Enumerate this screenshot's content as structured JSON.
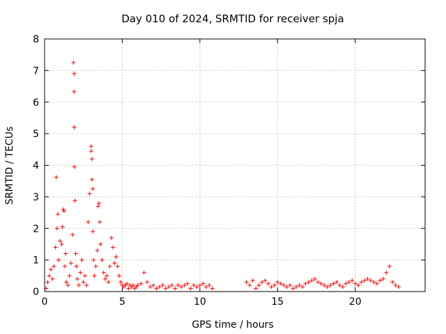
{
  "chart_data": {
    "type": "scatter",
    "title": "Day 010 of 2024, SRMTID for receiver spja",
    "xlabel": "GPS time / hours",
    "ylabel": "SRMTID / TECUs",
    "xlim": [
      0,
      24.5
    ],
    "ylim": [
      0,
      8
    ],
    "xticks": [
      0,
      5,
      10,
      15,
      20
    ],
    "xtick_labels": [
      "0",
      "5",
      "10",
      "15",
      "20"
    ],
    "yticks": [
      0,
      1,
      2,
      3,
      4,
      5,
      6,
      7,
      8
    ],
    "ytick_labels": [
      "0",
      "1",
      "2",
      "3",
      "4",
      "5",
      "6",
      "7",
      "8"
    ],
    "grid": true,
    "marker": "+",
    "color": "#ff0000",
    "series": [
      {
        "name": "SRMTID",
        "x": [
          0.1,
          0.2,
          0.3,
          0.4,
          0.5,
          0.6,
          0.7,
          0.75,
          0.8,
          0.85,
          0.9,
          1.0,
          1.1,
          1.15,
          1.2,
          1.25,
          1.3,
          1.35,
          1.4,
          1.5,
          1.6,
          1.7,
          1.8,
          1.85,
          1.9,
          1.9,
          1.9,
          1.92,
          1.95,
          2.0,
          2.05,
          2.1,
          2.2,
          2.3,
          2.4,
          2.5,
          2.6,
          2.7,
          2.8,
          2.9,
          3.0,
          3.0,
          3.05,
          3.05,
          3.1,
          3.1,
          3.15,
          3.2,
          3.3,
          3.4,
          3.45,
          3.5,
          3.55,
          3.6,
          3.7,
          3.8,
          3.9,
          4.0,
          4.1,
          4.2,
          4.3,
          4.4,
          4.5,
          4.6,
          4.7,
          4.8,
          4.9,
          5.0,
          5.1,
          5.2,
          5.3,
          5.4,
          5.5,
          5.6,
          5.7,
          5.8,
          5.9,
          6.0,
          6.2,
          6.4,
          6.6,
          6.8,
          7.0,
          7.2,
          7.4,
          7.6,
          7.8,
          8.0,
          8.2,
          8.4,
          8.6,
          8.8,
          9.0,
          9.2,
          9.4,
          9.6,
          9.8,
          10.0,
          10.2,
          10.4,
          10.6,
          10.8,
          13.0,
          13.2,
          13.4,
          13.6,
          13.8,
          14.0,
          14.2,
          14.4,
          14.6,
          14.8,
          15.0,
          15.2,
          15.4,
          15.6,
          15.8,
          16.0,
          16.2,
          16.4,
          16.6,
          16.8,
          17.0,
          17.2,
          17.4,
          17.6,
          17.8,
          18.0,
          18.2,
          18.4,
          18.6,
          18.8,
          19.0,
          19.2,
          19.4,
          19.6,
          19.8,
          20.0,
          20.2,
          20.4,
          20.6,
          20.8,
          21.0,
          21.2,
          21.4,
          21.6,
          21.8,
          22.0,
          22.2,
          22.4,
          22.6,
          22.8
        ],
        "y": [
          0.1,
          0.3,
          0.5,
          0.7,
          0.4,
          0.8,
          1.4,
          3.62,
          2.0,
          2.45,
          1.0,
          1.6,
          1.5,
          2.05,
          2.6,
          2.55,
          0.8,
          1.2,
          0.3,
          0.2,
          0.5,
          0.9,
          1.8,
          7.25,
          6.9,
          6.33,
          5.2,
          3.95,
          2.88,
          1.2,
          0.8,
          0.4,
          0.2,
          0.6,
          1.0,
          0.3,
          0.5,
          0.2,
          2.2,
          3.1,
          4.6,
          4.45,
          4.2,
          3.55,
          3.25,
          1.9,
          1.0,
          0.5,
          0.8,
          1.3,
          2.7,
          2.8,
          2.2,
          1.5,
          1.0,
          0.6,
          0.4,
          0.5,
          0.3,
          0.8,
          1.7,
          1.4,
          0.9,
          1.1,
          0.8,
          0.5,
          0.3,
          0.2,
          0.15,
          0.2,
          0.25,
          0.1,
          0.2,
          0.15,
          0.2,
          0.1,
          0.15,
          0.2,
          0.25,
          0.6,
          0.3,
          0.15,
          0.2,
          0.1,
          0.15,
          0.2,
          0.1,
          0.15,
          0.2,
          0.1,
          0.2,
          0.15,
          0.2,
          0.25,
          0.1,
          0.2,
          0.15,
          0.2,
          0.25,
          0.15,
          0.2,
          0.1,
          0.3,
          0.2,
          0.35,
          0.1,
          0.2,
          0.3,
          0.35,
          0.25,
          0.15,
          0.2,
          0.3,
          0.25,
          0.2,
          0.15,
          0.2,
          0.1,
          0.15,
          0.2,
          0.15,
          0.25,
          0.3,
          0.35,
          0.4,
          0.3,
          0.25,
          0.2,
          0.15,
          0.2,
          0.25,
          0.3,
          0.2,
          0.15,
          0.25,
          0.3,
          0.35,
          0.25,
          0.2,
          0.3,
          0.35,
          0.4,
          0.35,
          0.3,
          0.25,
          0.35,
          0.4,
          0.6,
          0.8,
          0.3,
          0.2,
          0.15
        ]
      }
    ]
  }
}
